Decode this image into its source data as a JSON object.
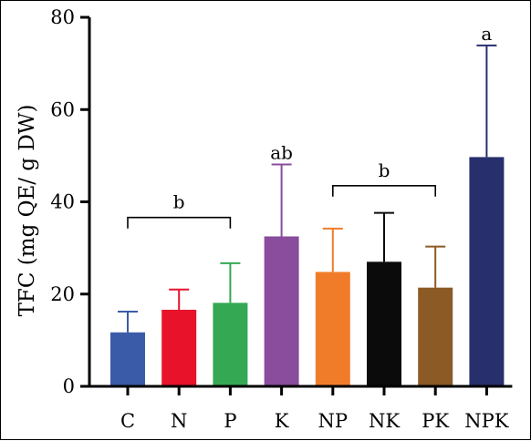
{
  "chart_data": {
    "type": "bar",
    "ylabel": "TFC (mg QE/ g DW)",
    "xlabel": "",
    "ylim": [
      0,
      80
    ],
    "yticks": [
      0,
      20,
      40,
      60,
      80
    ],
    "ytick_labels": [
      "0",
      "20",
      "40",
      "60",
      "80"
    ],
    "grid": false,
    "categories": [
      "C",
      "N",
      "P",
      "K",
      "NP",
      "NK",
      "PK",
      "NPK"
    ],
    "values": [
      11.7,
      16.6,
      18.1,
      32.5,
      24.8,
      27.0,
      21.4,
      49.7
    ],
    "error_upper": [
      16.2,
      21.0,
      26.7,
      48.1,
      34.2,
      37.6,
      30.3,
      73.9
    ],
    "colors": [
      "#3a5ca8",
      "#e8132b",
      "#34a853",
      "#8a4c9c",
      "#f07c2a",
      "#0b0b0b",
      "#8c5a25",
      "#27306d"
    ],
    "annotations": [
      {
        "text": "b",
        "type": "bracket",
        "from": "C",
        "to": "P",
        "y": 36.6
      },
      {
        "text": "ab",
        "type": "label",
        "at": "K",
        "y": 48.5
      },
      {
        "text": "b",
        "type": "bracket",
        "from": "NP",
        "to": "PK",
        "y": 43.5
      },
      {
        "text": "a",
        "type": "label",
        "at": "NPK",
        "y": 74.3
      }
    ]
  }
}
